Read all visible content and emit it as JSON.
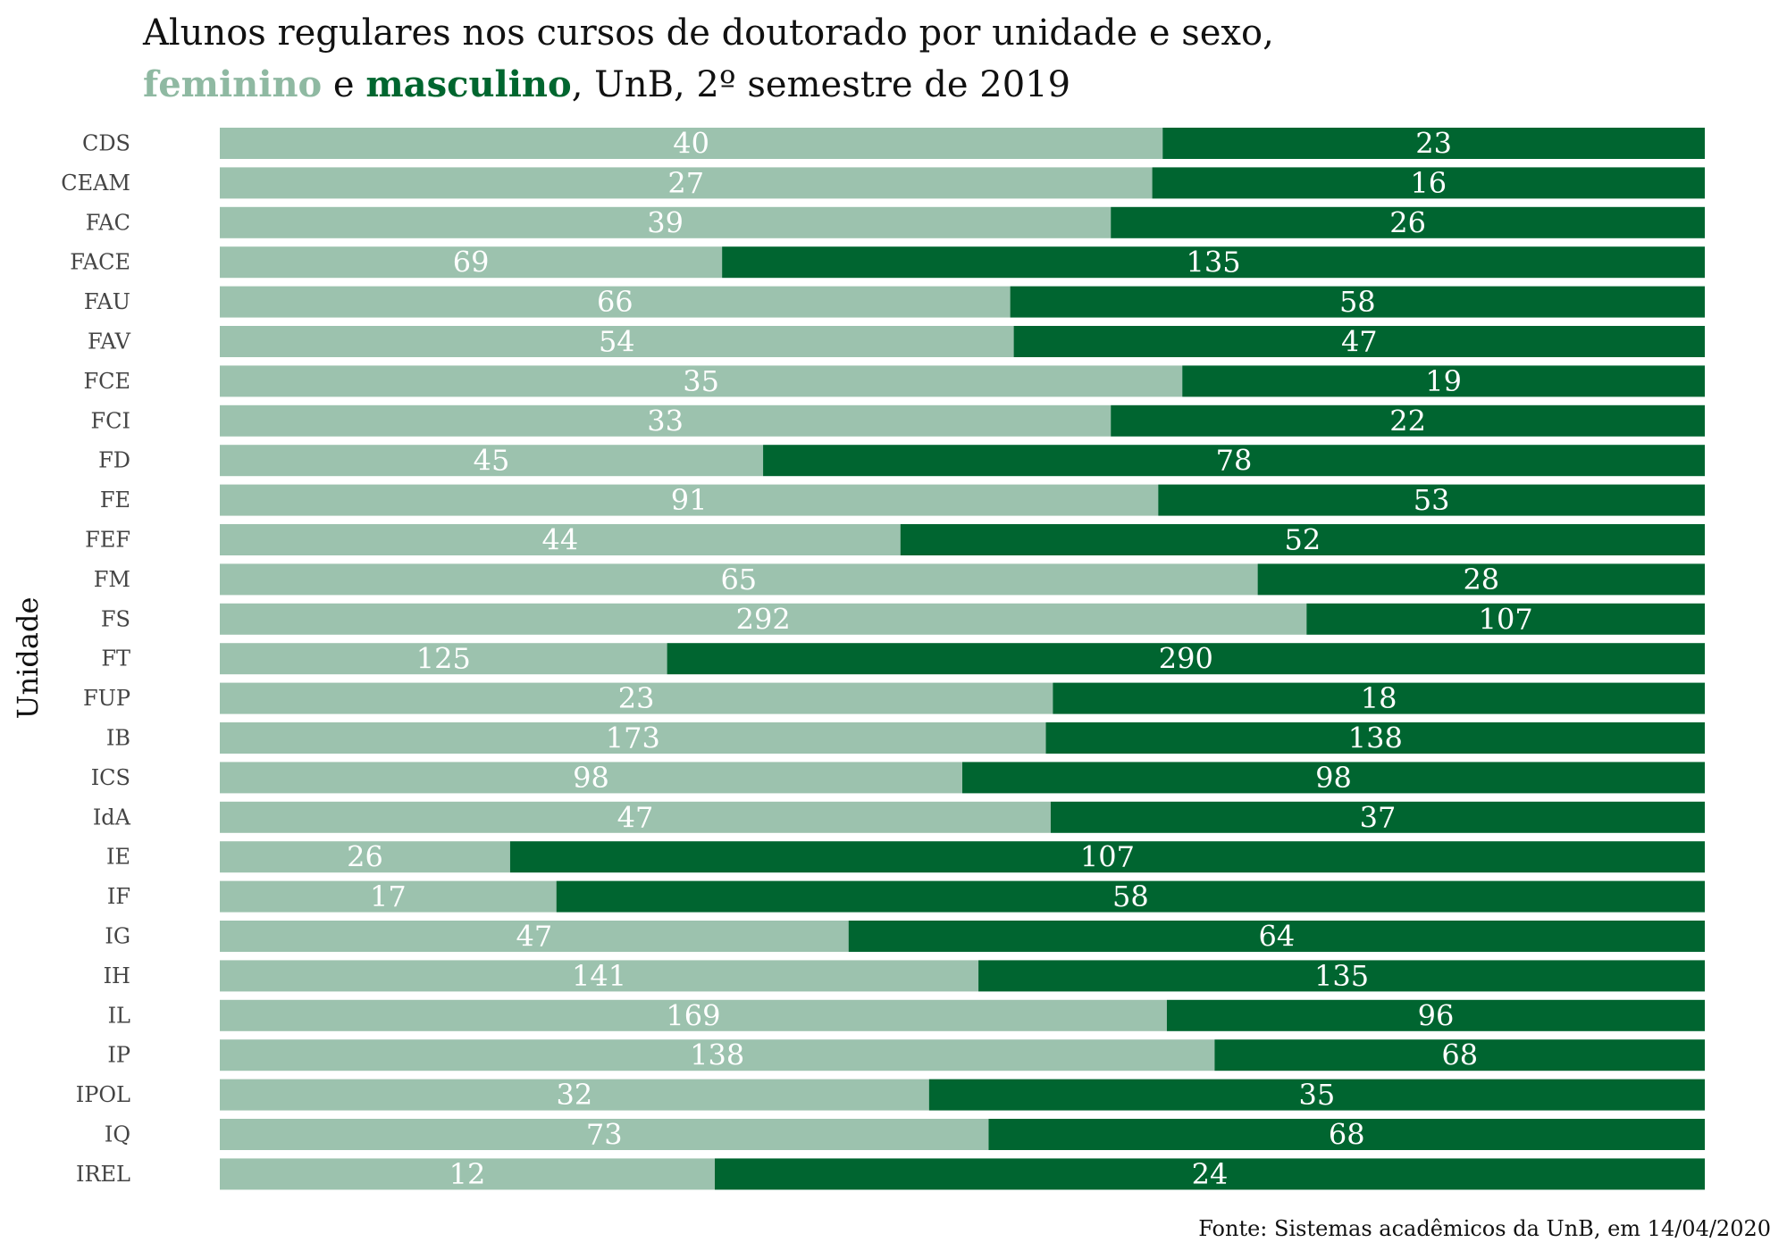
{
  "title": {
    "line1": "Alunos regulares nos cursos de doutorado por unidade e sexo,",
    "fem_label": "feminino",
    "connector": " e ",
    "masc_label": "masculino",
    "suffix": ", UnB, 2º semestre de 2019"
  },
  "source": "Fonte: Sistemas acadêmicos da UnB, em 14/04/2020",
  "colors": {
    "feminino": "#9cc2ae",
    "masculino": "#006530",
    "label_text": "#ffffff"
  },
  "chart_data": {
    "type": "bar",
    "orientation": "horizontal",
    "stacked": "percent",
    "ylabel": "Unidade",
    "categories": [
      "CDS",
      "CEAM",
      "FAC",
      "FACE",
      "FAU",
      "FAV",
      "FCE",
      "FCI",
      "FD",
      "FE",
      "FEF",
      "FM",
      "FS",
      "FT",
      "FUP",
      "IB",
      "ICS",
      "IdA",
      "IE",
      "IF",
      "IG",
      "IH",
      "IL",
      "IP",
      "IPOL",
      "IQ",
      "IREL"
    ],
    "series": [
      {
        "name": "feminino",
        "values": [
          40,
          27,
          39,
          69,
          66,
          54,
          35,
          33,
          45,
          91,
          44,
          65,
          292,
          125,
          23,
          173,
          98,
          47,
          26,
          17,
          47,
          141,
          169,
          138,
          32,
          73,
          12
        ]
      },
      {
        "name": "masculino",
        "values": [
          23,
          16,
          26,
          135,
          58,
          47,
          19,
          22,
          78,
          53,
          52,
          28,
          107,
          290,
          18,
          138,
          98,
          37,
          107,
          58,
          64,
          135,
          96,
          68,
          35,
          68,
          24
        ]
      }
    ],
    "grid": false,
    "legend": "in-title"
  }
}
